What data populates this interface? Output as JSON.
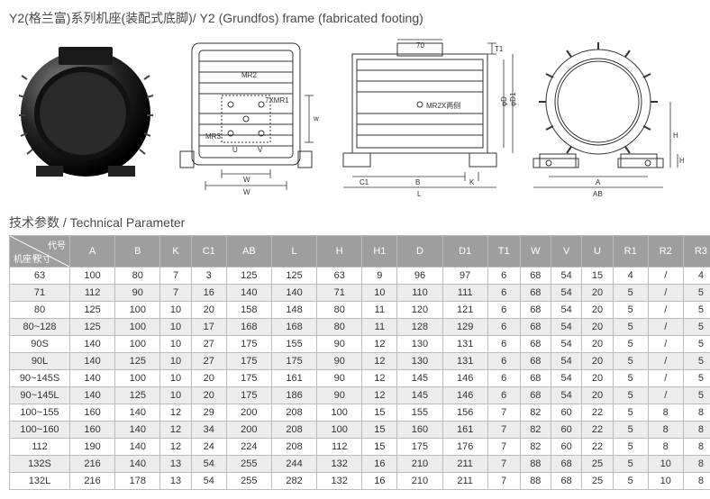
{
  "title": "Y2(格兰富)系列机座(装配式底脚)/ Y2 (Grundfos) frame (fabricated footing)",
  "paramTitle": "技术参数 / Technical Parameter",
  "cornerLabel1": "代号",
  "cornerLabel2": "机座号",
  "cornerLabel3": "尺寸",
  "diag": {
    "mr2": "MR2",
    "mr3": "MR3",
    "xmr1": "7XMR1",
    "mr2x": "MR2X两侧",
    "u": "U",
    "v": "V",
    "w": "W",
    "w2": "w",
    "c1": "C1",
    "l": "L",
    "b": "B",
    "k": "K",
    "t1": "T1",
    "d": "φD",
    "d1": "φD1",
    "h": "H",
    "h1": "H1",
    "a": "A",
    "ab": "AB",
    "s70": "70"
  },
  "columns": [
    "A",
    "B",
    "K",
    "C1",
    "AB",
    "L",
    "H",
    "H1",
    "D",
    "D1",
    "T1",
    "W",
    "V",
    "U",
    "R1",
    "R2",
    "R3"
  ],
  "rows": [
    {
      "m": "63",
      "v": [
        "100",
        "80",
        "7",
        "3",
        "125",
        "125",
        "63",
        "9",
        "96",
        "97",
        "6",
        "68",
        "54",
        "15",
        "4",
        "/",
        "4"
      ]
    },
    {
      "m": "71",
      "v": [
        "112",
        "90",
        "7",
        "16",
        "140",
        "140",
        "71",
        "10",
        "110",
        "111",
        "6",
        "68",
        "54",
        "20",
        "5",
        "/",
        "5"
      ]
    },
    {
      "m": "80",
      "v": [
        "125",
        "100",
        "10",
        "20",
        "158",
        "148",
        "80",
        "11",
        "120",
        "121",
        "6",
        "68",
        "54",
        "20",
        "5",
        "/",
        "5"
      ]
    },
    {
      "m": "80~128",
      "v": [
        "125",
        "100",
        "10",
        "17",
        "168",
        "168",
        "80",
        "11",
        "128",
        "129",
        "6",
        "68",
        "54",
        "20",
        "5",
        "/",
        "5"
      ]
    },
    {
      "m": "90S",
      "v": [
        "140",
        "100",
        "10",
        "27",
        "175",
        "155",
        "90",
        "12",
        "130",
        "131",
        "6",
        "68",
        "54",
        "20",
        "5",
        "/",
        "5"
      ]
    },
    {
      "m": "90L",
      "v": [
        "140",
        "125",
        "10",
        "27",
        "175",
        "175",
        "90",
        "12",
        "130",
        "131",
        "6",
        "68",
        "54",
        "20",
        "5",
        "/",
        "5"
      ]
    },
    {
      "m": "90~145S",
      "v": [
        "140",
        "100",
        "10",
        "20",
        "175",
        "161",
        "90",
        "12",
        "145",
        "146",
        "6",
        "68",
        "54",
        "20",
        "5",
        "/",
        "5"
      ]
    },
    {
      "m": "90~145L",
      "v": [
        "140",
        "125",
        "10",
        "20",
        "175",
        "186",
        "90",
        "12",
        "145",
        "146",
        "6",
        "68",
        "54",
        "20",
        "5",
        "/",
        "5"
      ]
    },
    {
      "m": "100~155",
      "v": [
        "160",
        "140",
        "12",
        "29",
        "200",
        "208",
        "100",
        "15",
        "155",
        "156",
        "7",
        "82",
        "60",
        "22",
        "5",
        "8",
        "8"
      ]
    },
    {
      "m": "100~160",
      "v": [
        "160",
        "140",
        "12",
        "34",
        "200",
        "208",
        "100",
        "15",
        "160",
        "161",
        "7",
        "82",
        "60",
        "22",
        "5",
        "8",
        "8"
      ]
    },
    {
      "m": "112",
      "v": [
        "190",
        "140",
        "12",
        "24",
        "224",
        "208",
        "112",
        "15",
        "175",
        "176",
        "7",
        "82",
        "60",
        "22",
        "5",
        "8",
        "8"
      ]
    },
    {
      "m": "132S",
      "v": [
        "216",
        "140",
        "13",
        "54",
        "255",
        "244",
        "132",
        "16",
        "210",
        "211",
        "7",
        "88",
        "68",
        "25",
        "5",
        "10",
        "8"
      ]
    },
    {
      "m": "132L",
      "v": [
        "216",
        "178",
        "13",
        "54",
        "255",
        "282",
        "132",
        "16",
        "210",
        "211",
        "7",
        "88",
        "68",
        "25",
        "5",
        "10",
        "8"
      ]
    }
  ]
}
